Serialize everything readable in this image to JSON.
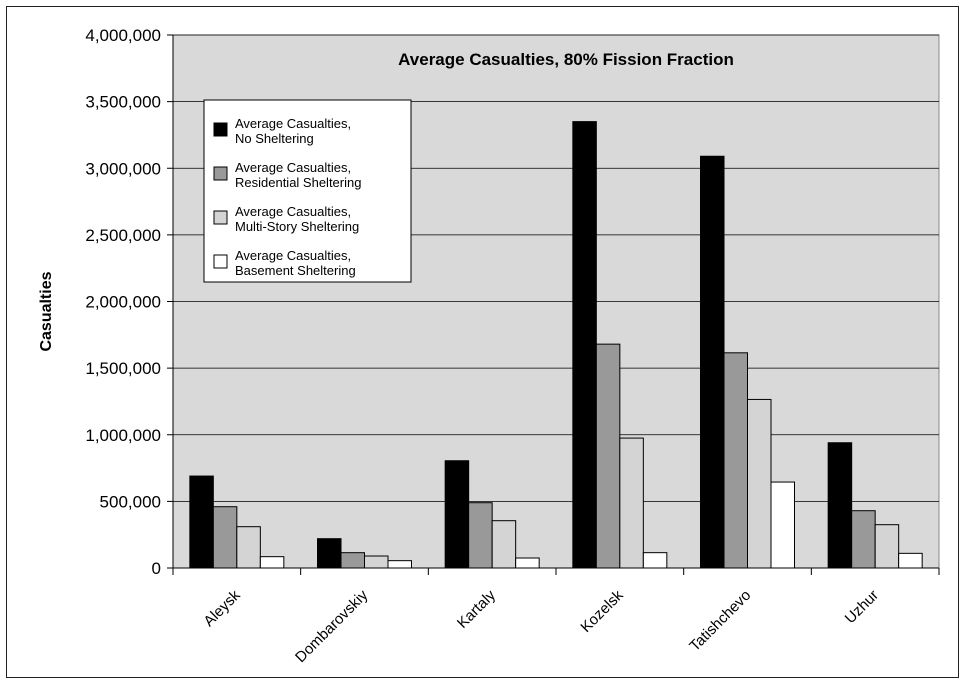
{
  "chart_data": {
    "type": "bar",
    "title": "Average Casualties, 80% Fission Fraction",
    "xlabel": "",
    "ylabel": "Casualties",
    "ylim": [
      0,
      4000000
    ],
    "yticks": [
      0,
      500000,
      1000000,
      1500000,
      2000000,
      2500000,
      3000000,
      3500000,
      4000000
    ],
    "ytick_labels": [
      "0",
      "500,000",
      "1,000,000",
      "1,500,000",
      "2,000,000",
      "2,500,000",
      "3,000,000",
      "3,500,000",
      "4,000,000"
    ],
    "categories": [
      "Aleysk",
      "Dombarovskiy",
      "Kartaly",
      "Kozelsk",
      "Tatishchevo",
      "Uzhur"
    ],
    "grid": true,
    "legend_position": "top-left",
    "plot_background": "#d9d9d9",
    "series": [
      {
        "name": "Average Casualties, No Sheltering",
        "legend_lines": [
          "Average Casualties,",
          "No Sheltering"
        ],
        "color": "#000000",
        "values": [
          690000,
          220000,
          805000,
          3350000,
          3090000,
          940000
        ]
      },
      {
        "name": "Average Casualties, Residential Sheltering",
        "legend_lines": [
          "Average Casualties,",
          "Residential Sheltering"
        ],
        "color": "#999999",
        "values": [
          460000,
          115000,
          490000,
          1680000,
          1615000,
          430000
        ]
      },
      {
        "name": "Average Casualties, Multi-Story Sheltering",
        "legend_lines": [
          "Average Casualties,",
          "Multi-Story Sheltering"
        ],
        "color": "#d4d4d4",
        "values": [
          310000,
          90000,
          355000,
          975000,
          1265000,
          325000
        ]
      },
      {
        "name": "Average Casualties, Basement Sheltering",
        "legend_lines": [
          "Average Casualties,",
          "Basement Sheltering"
        ],
        "color": "#ffffff",
        "values": [
          85000,
          55000,
          75000,
          115000,
          645000,
          110000
        ]
      }
    ]
  }
}
